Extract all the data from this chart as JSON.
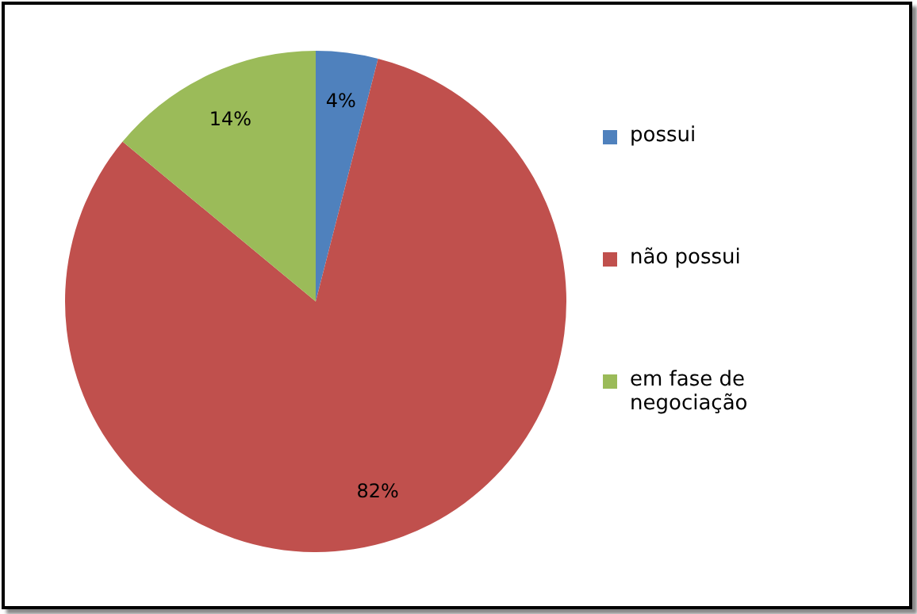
{
  "chart_data": {
    "type": "pie",
    "categories": [
      "possui",
      "não possui",
      "em fase de negociação"
    ],
    "values": [
      4,
      82,
      14
    ],
    "colors": [
      "#4f81bd",
      "#c0504d",
      "#9bbb59"
    ],
    "value_labels": [
      "4%",
      "82%",
      "14%"
    ],
    "legend": "right"
  }
}
